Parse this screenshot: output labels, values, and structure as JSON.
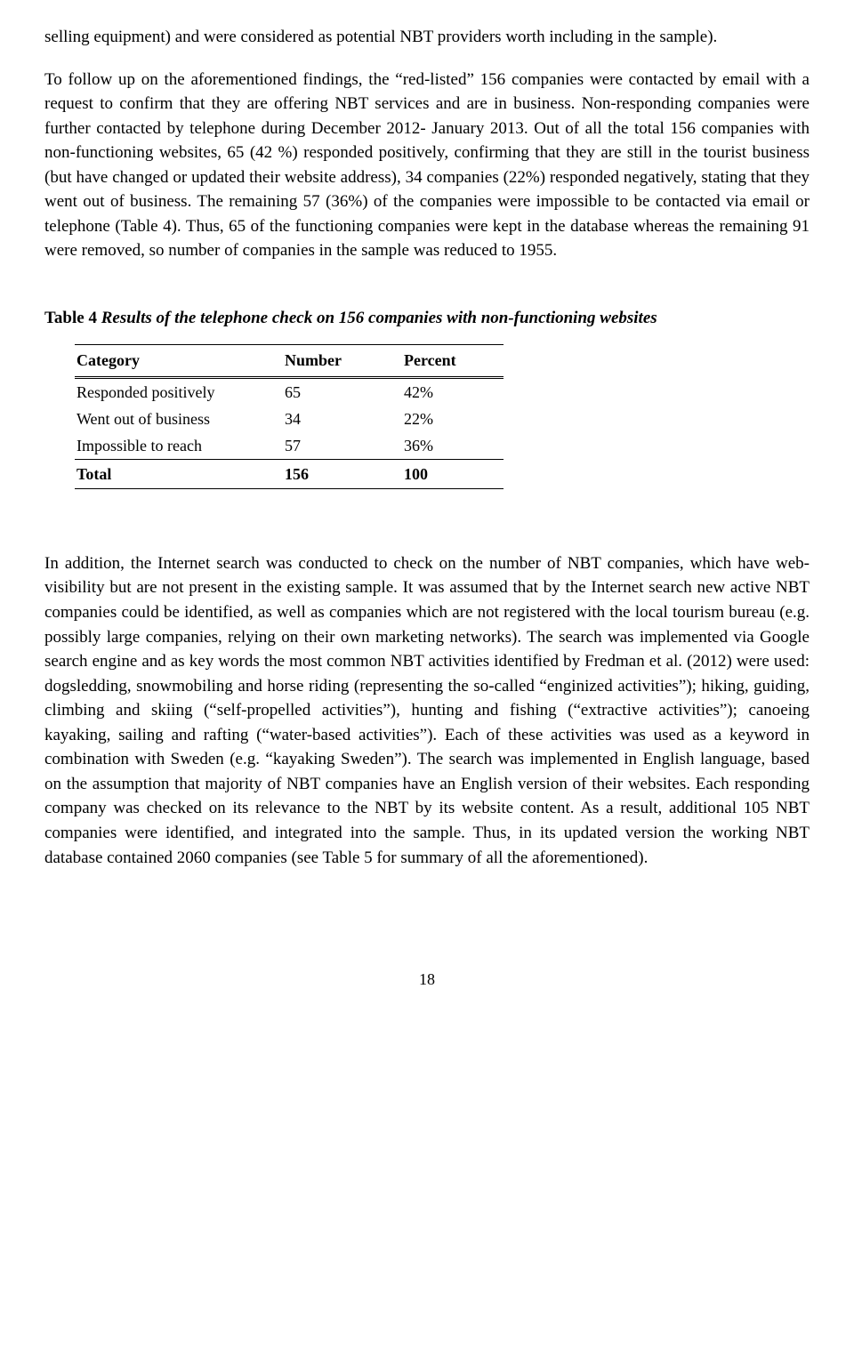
{
  "paragraphs": {
    "p1": "selling equipment) and were considered as potential NBT providers worth including in the sample).",
    "p2": "To follow up on the aforementioned findings, the “red-listed” 156 companies were contacted by email with a request to confirm that they are offering NBT services and are in business. Non-responding companies were further contacted by telephone during December 2012- January 2013. Out of all the total 156 companies with non-functioning websites, 65 (42 %) responded positively, confirming that they are still in the tourist business (but have changed or updated their website address), 34 companies (22%) responded negatively, stating that they went out of business. The remaining 57 (36%) of the companies were impossible to be contacted via email or telephone (Table 4). Thus, 65 of the functioning companies were kept in the database whereas the remaining 91 were removed, so number of companies in the sample was reduced to 1955.",
    "p3": "In addition, the Internet search was conducted to check on the number of NBT companies, which have web-visibility but are not present in the existing sample. It was assumed that by the Internet search new active NBT companies could be identified, as well as companies which are not registered with the local tourism bureau (e.g. possibly large companies, relying on their own marketing networks). The search was implemented via Google search engine and as key words the most common NBT activities identified by Fredman et al. (2012) were used: dogsledding, snowmobiling and horse riding (representing  the so-called “enginized activities”); hiking, guiding, climbing and skiing (“self-propelled activities”), hunting and fishing (“extractive activities”); canoeing kayaking, sailing and rafting (“water-based activities”). Each of these activities was used as a keyword in combination with Sweden (e.g. “kayaking Sweden”). The search was implemented in English language, based on the assumption that majority of NBT companies have an English version of their websites. Each responding company was checked on its relevance to the NBT by its website content. As a result, additional 105 NBT companies were identified, and integrated into the sample. Thus, in its updated version the working NBT database contained 2060 companies (see Table 5 for summary of all the aforementioned)."
  },
  "table4": {
    "caption_label": "Table 4 ",
    "caption_title": "Results of the telephone check on 156 companies with non-functioning websites",
    "headers": {
      "category": "Category",
      "number": "Number",
      "percent": "Percent"
    },
    "rows": [
      {
        "category": "Responded positively",
        "number": "65",
        "percent": "42%"
      },
      {
        "category": "Went out of business",
        "number": "34",
        "percent": "22%"
      },
      {
        "category": "Impossible to reach",
        "number": "57",
        "percent": "36%"
      }
    ],
    "total": {
      "label": "Total",
      "number": "156",
      "percent": "100"
    }
  },
  "page_number": "18"
}
